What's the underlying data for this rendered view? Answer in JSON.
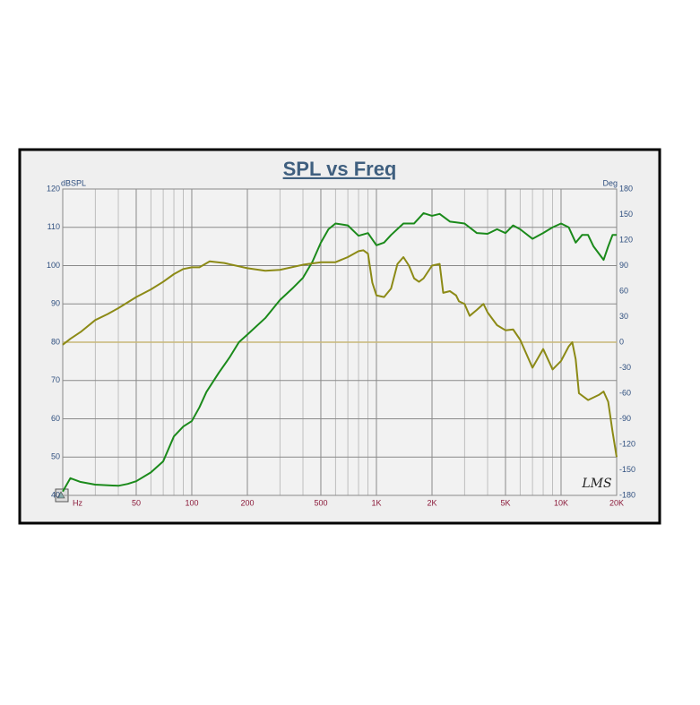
{
  "chart_data": {
    "type": "line",
    "title": "SPL vs Freq",
    "ylabel": "dBSPL",
    "y2label": "Deg",
    "xlabel": "Hz",
    "watermark": "LMS",
    "xscale": "log",
    "xlim": [
      20,
      20000
    ],
    "xticks": [
      50,
      100,
      200,
      500,
      {
        "value": 1000,
        "label": "1K"
      },
      {
        "value": 2000,
        "label": "2K"
      },
      {
        "value": 5000,
        "label": "5K"
      },
      {
        "value": 10000,
        "label": "10K"
      },
      {
        "value": 20000,
        "label": "20K"
      }
    ],
    "x_minor_grid": [
      30,
      40,
      60,
      70,
      80,
      90,
      300,
      400,
      600,
      700,
      800,
      900,
      3000,
      4000,
      6000,
      7000,
      8000,
      9000
    ],
    "ylim": [
      40,
      120
    ],
    "yticks": [
      40,
      50,
      60,
      70,
      80,
      90,
      100,
      110,
      120
    ],
    "y2lim": [
      -180,
      180
    ],
    "y2ticks": [
      -180,
      -150,
      -120,
      -90,
      -60,
      -30,
      0,
      30,
      60,
      90,
      120,
      150,
      180
    ],
    "grid": true,
    "reference_line": {
      "value": 0,
      "axis": "y2",
      "color": "#c8b878"
    },
    "series": [
      {
        "color": "#1b8a1b",
        "x": [
          20,
          22,
          25,
          30,
          40,
          45,
          50,
          60,
          70,
          80,
          90,
          100,
          110,
          120,
          140,
          160,
          180,
          200,
          250,
          300,
          350,
          400,
          450,
          500,
          550,
          600,
          700,
          800,
          900,
          1000,
          1100,
          1200,
          1400,
          1600,
          1800,
          2000,
          2200,
          2500,
          3000,
          3500,
          4000,
          4500,
          5000,
          5500,
          6000,
          7000,
          8000,
          9000,
          10000,
          11000,
          12000,
          13000,
          14000,
          15000,
          17000,
          18000,
          19000,
          20000
        ],
        "values": [
          41,
          44.5,
          43.5,
          42.8,
          42.5,
          43,
          43.7,
          46,
          48.9,
          55.4,
          58,
          59.4,
          63,
          67,
          72,
          76,
          80,
          82,
          86.3,
          91,
          94,
          96.8,
          101,
          106,
          109.5,
          111,
          110.5,
          107.8,
          108.5,
          105.3,
          106,
          108,
          111,
          111,
          113.7,
          113,
          113.5,
          111.5,
          111,
          108.5,
          108.3,
          109.5,
          108.5,
          110.5,
          109.5,
          107,
          108.5,
          110,
          111,
          110,
          106,
          108,
          108,
          105,
          101.5,
          105,
          108,
          108
        ]
      },
      {
        "color": "#8c8a16",
        "axis": "y2",
        "x": [
          20,
          22,
          25,
          30,
          35,
          40,
          50,
          60,
          70,
          80,
          90,
          100,
          110,
          125,
          150,
          200,
          250,
          300,
          400,
          500,
          600,
          700,
          800,
          850,
          900,
          950,
          1000,
          1100,
          1200,
          1300,
          1400,
          1500,
          1600,
          1700,
          1800,
          2000,
          2200,
          2300,
          2500,
          2700,
          2800,
          3000,
          3200,
          3500,
          3800,
          4000,
          4500,
          5000,
          5500,
          6000,
          7000,
          8000,
          9000,
          10000,
          11000,
          11500,
          12000,
          12500,
          14000,
          16000,
          17000,
          18000,
          19000,
          20000
        ],
        "values": [
          -3,
          4,
          12,
          26,
          33,
          40,
          53,
          62,
          71,
          80,
          86,
          88,
          88,
          95,
          93,
          87,
          84,
          85,
          91,
          94,
          94,
          100,
          107,
          108,
          104,
          70,
          55,
          53,
          63,
          92,
          100,
          90,
          75,
          71,
          75,
          90,
          92,
          58,
          60,
          55,
          48,
          45,
          31,
          38,
          45,
          35,
          20,
          14,
          15,
          3,
          -30,
          -8,
          -32,
          -22,
          -5,
          0,
          -20,
          -60,
          -68,
          -62,
          -58,
          -70,
          -105,
          -135
        ]
      }
    ]
  }
}
